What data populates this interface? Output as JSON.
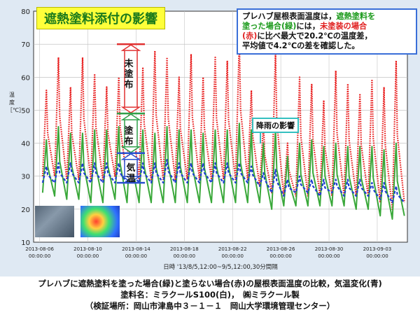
{
  "title_box": "遮熱塗料添付の影響",
  "callout": {
    "p1": "プレハブ屋根表面温度は，",
    "p2": "遮熱塗料を",
    "p3": "塗った場合(緑)",
    "p4": "には，",
    "p5": "未塗装の場合",
    "p6": "(赤)",
    "p7": "に比べ最大で20.2℃の温度差，",
    "p8": "平均値で4.2℃の差を確認した。"
  },
  "rain_label": "降雨の影響",
  "y_axis_title": "温度 ［℃］",
  "legend_labels": {
    "uncoated": "未塗布",
    "coated": "塗布",
    "air": "気温"
  },
  "x_axis_title": "日時  '13/8/5,12:00~9/5,12:00,30分間隔",
  "footer": {
    "line1": "プレハブに遮熱塗料を塗った場合(緑)と塗らない場合(赤)の屋根表面温度の比較，気温変化(青)",
    "line2": "塗料名：ミラクールS100(白)，　㈱ミラクール製",
    "line3": "（検証場所：岡山市津島中３－１－１　岡山大学環境管理センター）"
  },
  "colors": {
    "uncoated": "#e81c1c",
    "coated": "#3aa83a",
    "air": "#1f3fcf",
    "marker_red": "#e03030",
    "marker_green": "#2fa04a",
    "marker_blue": "#2a50d0"
  },
  "chart_data": {
    "type": "line",
    "x_range": [
      "2013-08-05 12:00",
      "2013-09-05 12:00"
    ],
    "x_interval": "30分",
    "ylim": [
      10,
      80
    ],
    "yticks": [
      10,
      20,
      30,
      40,
      50,
      60,
      70,
      80
    ],
    "xticks": [
      {
        "date": "2013-08-06",
        "time": "00:00:00"
      },
      {
        "date": "2013-08-10",
        "time": "00:00:00"
      },
      {
        "date": "2013-08-14",
        "time": "00:00:00"
      },
      {
        "date": "2013-08-18",
        "time": "00:00:00"
      },
      {
        "date": "2013-08-22",
        "time": "00:00:00"
      },
      {
        "date": "2013-08-26",
        "time": "00:00:00"
      },
      {
        "date": "2013-08-30",
        "time": "00:00:00"
      },
      {
        "date": "2013-09-03",
        "time": "00:00:00"
      }
    ],
    "days": [
      "2013-08-06",
      "2013-08-07",
      "2013-08-08",
      "2013-08-09",
      "2013-08-10",
      "2013-08-11",
      "2013-08-12",
      "2013-08-13",
      "2013-08-14",
      "2013-08-15",
      "2013-08-16",
      "2013-08-17",
      "2013-08-18",
      "2013-08-19",
      "2013-08-20",
      "2013-08-21",
      "2013-08-22",
      "2013-08-23",
      "2013-08-24",
      "2013-08-25",
      "2013-08-26",
      "2013-08-27",
      "2013-08-28",
      "2013-08-29",
      "2013-08-30",
      "2013-08-31",
      "2013-09-01",
      "2013-09-02",
      "2013-09-03",
      "2013-09-04",
      "2013-09-05"
    ],
    "series": [
      {
        "key": "uncoated",
        "daily_max": [
          56,
          66,
          57,
          66,
          61,
          57,
          60,
          67,
          63,
          68,
          66,
          60,
          67,
          60,
          66,
          65,
          71,
          56,
          46,
          68,
          40,
          60,
          58,
          53,
          62,
          58,
          55,
          59,
          57,
          65,
          48
        ],
        "night_min": [
          30,
          30,
          29,
          29,
          29,
          29,
          30,
          29,
          29,
          29,
          29,
          29,
          29,
          29,
          29,
          29,
          29,
          29,
          27,
          25,
          24,
          24,
          24,
          24,
          24,
          24,
          24,
          24,
          22,
          20,
          22
        ]
      },
      {
        "key": "coated",
        "daily_max": [
          41,
          45,
          43,
          43,
          44,
          44,
          45,
          44,
          44,
          43,
          45,
          44,
          44,
          43,
          44,
          44,
          46,
          44,
          40,
          44,
          36,
          40,
          41,
          39,
          40,
          39,
          39,
          39,
          38,
          40,
          35
        ],
        "night_min": [
          25,
          24,
          23,
          23,
          22,
          22,
          23,
          22,
          22,
          22,
          22,
          22,
          22,
          22,
          22,
          22,
          22,
          22,
          22,
          20,
          21,
          21,
          21,
          21,
          21,
          21,
          20,
          20,
          18,
          17,
          18
        ]
      },
      {
        "key": "air",
        "daily_max": [
          33,
          34,
          34,
          34,
          34,
          34,
          34,
          34,
          34,
          34,
          35,
          34,
          34,
          34,
          34,
          34,
          34,
          33,
          31,
          32,
          29,
          30,
          29,
          29,
          29,
          29,
          29,
          28,
          28,
          27,
          26
        ],
        "night_min": [
          28,
          28,
          28,
          28,
          28,
          28,
          28,
          28,
          28,
          28,
          28,
          28,
          28,
          28,
          28,
          28,
          28,
          28,
          27,
          25,
          24,
          25,
          25,
          24,
          25,
          24,
          24,
          24,
          23,
          22,
          22
        ]
      }
    ],
    "grid": true,
    "annotations": [
      {
        "text": "未塗布",
        "y_top": 70,
        "y_bottom": 49
      },
      {
        "text": "塗布",
        "y_top": 49,
        "y_bottom": 37
      },
      {
        "text": "気温",
        "y_top": 37,
        "y_bottom": 28
      }
    ]
  }
}
